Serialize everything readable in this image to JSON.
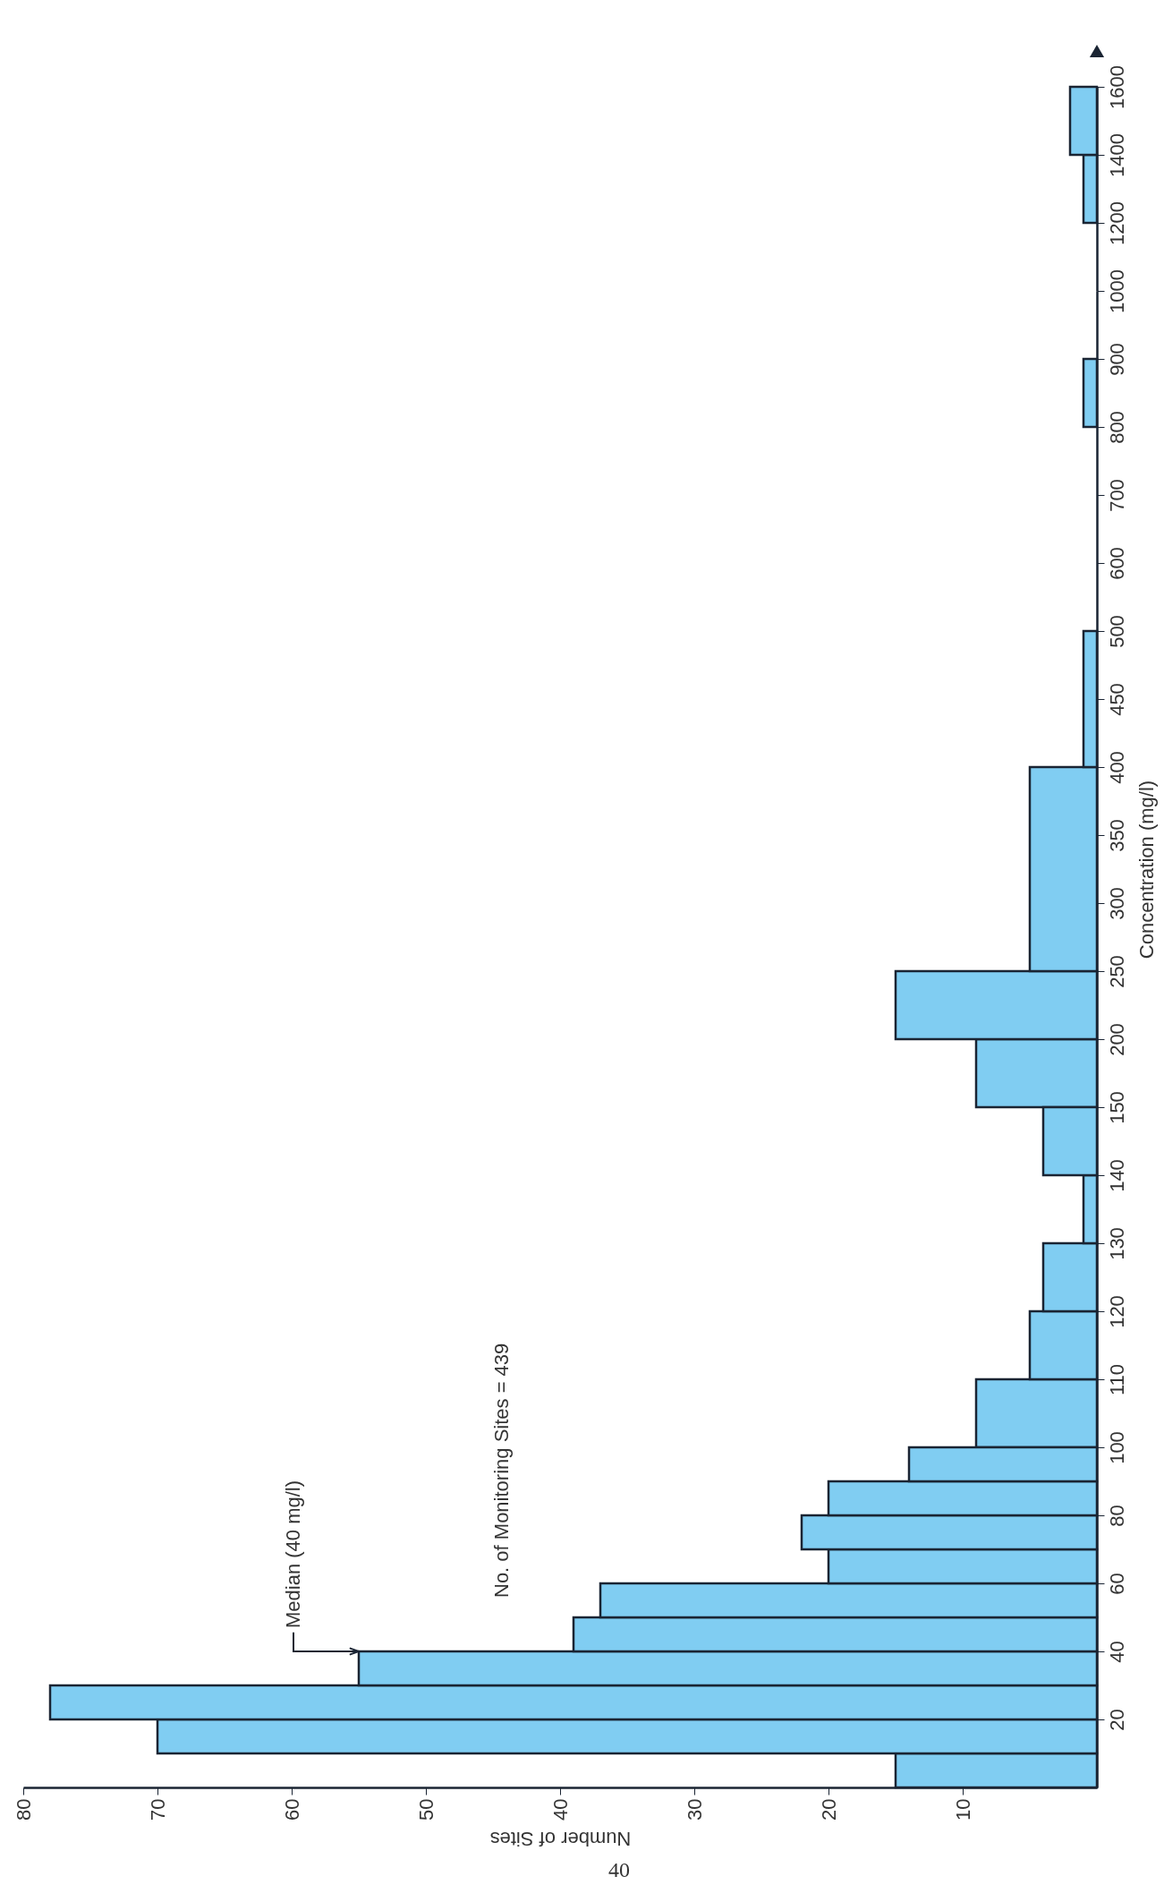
{
  "chart_data": [
    {
      "type": "histogram",
      "orientation": "horizontal",
      "bins": [
        1200,
        1400,
        1600
      ],
      "values": [
        1,
        2
      ],
      "color": "#80cdf2",
      "xlim": [
        80,
        0
      ],
      "xticks": [
        80,
        70,
        60,
        50,
        40,
        30,
        20,
        10
      ],
      "ylim": [
        1000,
        1600
      ],
      "yticks": [
        1200,
        1400,
        1600
      ],
      "tick_labels": "y",
      "grid": false
    },
    {
      "type": "histogram",
      "orientation": "horizontal",
      "bins": [
        800,
        900
      ],
      "values": [
        1
      ],
      "color": "#80cdf2",
      "xlim": [
        80,
        0
      ],
      "xticks": [
        80,
        70,
        60,
        50,
        40,
        30,
        20,
        10
      ],
      "ylim": [
        500,
        1000
      ],
      "yticks": [
        600,
        700,
        800,
        900,
        1000
      ],
      "tick_labels": "y",
      "grid": false
    },
    {
      "type": "histogram",
      "orientation": "horizontal",
      "ylabel": "Concentration (mg/l)",
      "bins": [
        150,
        200,
        250,
        400,
        500
      ],
      "values": [
        9,
        15,
        5,
        1
      ],
      "color": "#80cdf2",
      "xlim": [
        80,
        0
      ],
      "xticks": [
        80,
        70,
        60,
        50,
        40,
        30,
        20,
        10
      ],
      "ylim": [
        150,
        500
      ],
      "yticks": [
        200,
        250,
        300,
        350,
        400,
        450,
        500
      ],
      "tick_labels": "y",
      "grid": false
    },
    {
      "type": "histogram",
      "orientation": "horizontal",
      "bins": [
        100,
        110,
        120,
        130,
        140,
        150
      ],
      "values": [
        9,
        5,
        4,
        1,
        4
      ],
      "color": "#80cdf2",
      "xlim": [
        80,
        0
      ],
      "xticks": [
        80,
        70,
        60,
        50,
        40,
        30,
        20,
        10
      ],
      "ylim": [
        100,
        150
      ],
      "yticks": [
        110,
        120,
        130,
        140,
        150
      ],
      "tick_labels": "y",
      "grid": false
    },
    {
      "type": "histogram",
      "orientation": "horizontal",
      "xlabel": "Number of Sites",
      "bins": [
        0,
        10,
        20,
        30,
        40,
        50,
        60,
        70,
        80,
        90,
        100
      ],
      "values": [
        15,
        70,
        78,
        55,
        39,
        37,
        20,
        22,
        20,
        14
      ],
      "color": "#80cdf2",
      "xlim": [
        80,
        0
      ],
      "xticks": [
        80,
        70,
        60,
        50,
        40,
        30,
        20,
        10
      ],
      "ylim": [
        0,
        100
      ],
      "yticks": [
        20,
        40,
        60,
        80,
        100
      ],
      "grid": false,
      "annotations": [
        {
          "text": "Median (40 mg/l)",
          "x": 55,
          "y": 40
        },
        "No. of Monitoring Sites = 439",
        "40"
      ]
    }
  ]
}
